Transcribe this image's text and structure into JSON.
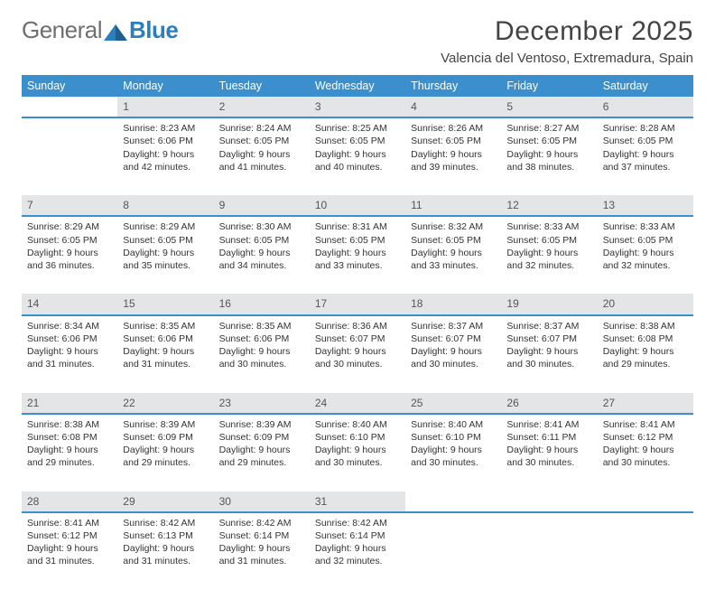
{
  "logo": {
    "word1": "General",
    "word2": "Blue"
  },
  "title": "December 2025",
  "location": "Valencia del Ventoso, Extremadura, Spain",
  "colors": {
    "header_bg": "#3b8fcc",
    "header_text": "#ffffff",
    "daynum_bg": "#e4e5e6",
    "daynum_border": "#3b8fcc",
    "body_text": "#333333",
    "logo_grey": "#6f6f6f",
    "logo_blue": "#2a7fbf"
  },
  "typography": {
    "title_fontsize": 30,
    "location_fontsize": 15,
    "th_fontsize": 12.5,
    "cell_fontsize": 10.5,
    "logo_fontsize": 26
  },
  "weekdays": [
    "Sunday",
    "Monday",
    "Tuesday",
    "Wednesday",
    "Thursday",
    "Friday",
    "Saturday"
  ],
  "weeks": [
    {
      "nums": [
        "",
        "1",
        "2",
        "3",
        "4",
        "5",
        "6"
      ],
      "cells": [
        null,
        {
          "sunrise": "Sunrise: 8:23 AM",
          "sunset": "Sunset: 6:06 PM",
          "d1": "Daylight: 9 hours",
          "d2": "and 42 minutes."
        },
        {
          "sunrise": "Sunrise: 8:24 AM",
          "sunset": "Sunset: 6:05 PM",
          "d1": "Daylight: 9 hours",
          "d2": "and 41 minutes."
        },
        {
          "sunrise": "Sunrise: 8:25 AM",
          "sunset": "Sunset: 6:05 PM",
          "d1": "Daylight: 9 hours",
          "d2": "and 40 minutes."
        },
        {
          "sunrise": "Sunrise: 8:26 AM",
          "sunset": "Sunset: 6:05 PM",
          "d1": "Daylight: 9 hours",
          "d2": "and 39 minutes."
        },
        {
          "sunrise": "Sunrise: 8:27 AM",
          "sunset": "Sunset: 6:05 PM",
          "d1": "Daylight: 9 hours",
          "d2": "and 38 minutes."
        },
        {
          "sunrise": "Sunrise: 8:28 AM",
          "sunset": "Sunset: 6:05 PM",
          "d1": "Daylight: 9 hours",
          "d2": "and 37 minutes."
        }
      ]
    },
    {
      "nums": [
        "7",
        "8",
        "9",
        "10",
        "11",
        "12",
        "13"
      ],
      "cells": [
        {
          "sunrise": "Sunrise: 8:29 AM",
          "sunset": "Sunset: 6:05 PM",
          "d1": "Daylight: 9 hours",
          "d2": "and 36 minutes."
        },
        {
          "sunrise": "Sunrise: 8:29 AM",
          "sunset": "Sunset: 6:05 PM",
          "d1": "Daylight: 9 hours",
          "d2": "and 35 minutes."
        },
        {
          "sunrise": "Sunrise: 8:30 AM",
          "sunset": "Sunset: 6:05 PM",
          "d1": "Daylight: 9 hours",
          "d2": "and 34 minutes."
        },
        {
          "sunrise": "Sunrise: 8:31 AM",
          "sunset": "Sunset: 6:05 PM",
          "d1": "Daylight: 9 hours",
          "d2": "and 33 minutes."
        },
        {
          "sunrise": "Sunrise: 8:32 AM",
          "sunset": "Sunset: 6:05 PM",
          "d1": "Daylight: 9 hours",
          "d2": "and 33 minutes."
        },
        {
          "sunrise": "Sunrise: 8:33 AM",
          "sunset": "Sunset: 6:05 PM",
          "d1": "Daylight: 9 hours",
          "d2": "and 32 minutes."
        },
        {
          "sunrise": "Sunrise: 8:33 AM",
          "sunset": "Sunset: 6:05 PM",
          "d1": "Daylight: 9 hours",
          "d2": "and 32 minutes."
        }
      ]
    },
    {
      "nums": [
        "14",
        "15",
        "16",
        "17",
        "18",
        "19",
        "20"
      ],
      "cells": [
        {
          "sunrise": "Sunrise: 8:34 AM",
          "sunset": "Sunset: 6:06 PM",
          "d1": "Daylight: 9 hours",
          "d2": "and 31 minutes."
        },
        {
          "sunrise": "Sunrise: 8:35 AM",
          "sunset": "Sunset: 6:06 PM",
          "d1": "Daylight: 9 hours",
          "d2": "and 31 minutes."
        },
        {
          "sunrise": "Sunrise: 8:35 AM",
          "sunset": "Sunset: 6:06 PM",
          "d1": "Daylight: 9 hours",
          "d2": "and 30 minutes."
        },
        {
          "sunrise": "Sunrise: 8:36 AM",
          "sunset": "Sunset: 6:07 PM",
          "d1": "Daylight: 9 hours",
          "d2": "and 30 minutes."
        },
        {
          "sunrise": "Sunrise: 8:37 AM",
          "sunset": "Sunset: 6:07 PM",
          "d1": "Daylight: 9 hours",
          "d2": "and 30 minutes."
        },
        {
          "sunrise": "Sunrise: 8:37 AM",
          "sunset": "Sunset: 6:07 PM",
          "d1": "Daylight: 9 hours",
          "d2": "and 30 minutes."
        },
        {
          "sunrise": "Sunrise: 8:38 AM",
          "sunset": "Sunset: 6:08 PM",
          "d1": "Daylight: 9 hours",
          "d2": "and 29 minutes."
        }
      ]
    },
    {
      "nums": [
        "21",
        "22",
        "23",
        "24",
        "25",
        "26",
        "27"
      ],
      "cells": [
        {
          "sunrise": "Sunrise: 8:38 AM",
          "sunset": "Sunset: 6:08 PM",
          "d1": "Daylight: 9 hours",
          "d2": "and 29 minutes."
        },
        {
          "sunrise": "Sunrise: 8:39 AM",
          "sunset": "Sunset: 6:09 PM",
          "d1": "Daylight: 9 hours",
          "d2": "and 29 minutes."
        },
        {
          "sunrise": "Sunrise: 8:39 AM",
          "sunset": "Sunset: 6:09 PM",
          "d1": "Daylight: 9 hours",
          "d2": "and 29 minutes."
        },
        {
          "sunrise": "Sunrise: 8:40 AM",
          "sunset": "Sunset: 6:10 PM",
          "d1": "Daylight: 9 hours",
          "d2": "and 30 minutes."
        },
        {
          "sunrise": "Sunrise: 8:40 AM",
          "sunset": "Sunset: 6:10 PM",
          "d1": "Daylight: 9 hours",
          "d2": "and 30 minutes."
        },
        {
          "sunrise": "Sunrise: 8:41 AM",
          "sunset": "Sunset: 6:11 PM",
          "d1": "Daylight: 9 hours",
          "d2": "and 30 minutes."
        },
        {
          "sunrise": "Sunrise: 8:41 AM",
          "sunset": "Sunset: 6:12 PM",
          "d1": "Daylight: 9 hours",
          "d2": "and 30 minutes."
        }
      ]
    },
    {
      "nums": [
        "28",
        "29",
        "30",
        "31",
        "",
        "",
        ""
      ],
      "cells": [
        {
          "sunrise": "Sunrise: 8:41 AM",
          "sunset": "Sunset: 6:12 PM",
          "d1": "Daylight: 9 hours",
          "d2": "and 31 minutes."
        },
        {
          "sunrise": "Sunrise: 8:42 AM",
          "sunset": "Sunset: 6:13 PM",
          "d1": "Daylight: 9 hours",
          "d2": "and 31 minutes."
        },
        {
          "sunrise": "Sunrise: 8:42 AM",
          "sunset": "Sunset: 6:14 PM",
          "d1": "Daylight: 9 hours",
          "d2": "and 31 minutes."
        },
        {
          "sunrise": "Sunrise: 8:42 AM",
          "sunset": "Sunset: 6:14 PM",
          "d1": "Daylight: 9 hours",
          "d2": "and 32 minutes."
        },
        null,
        null,
        null
      ]
    }
  ]
}
